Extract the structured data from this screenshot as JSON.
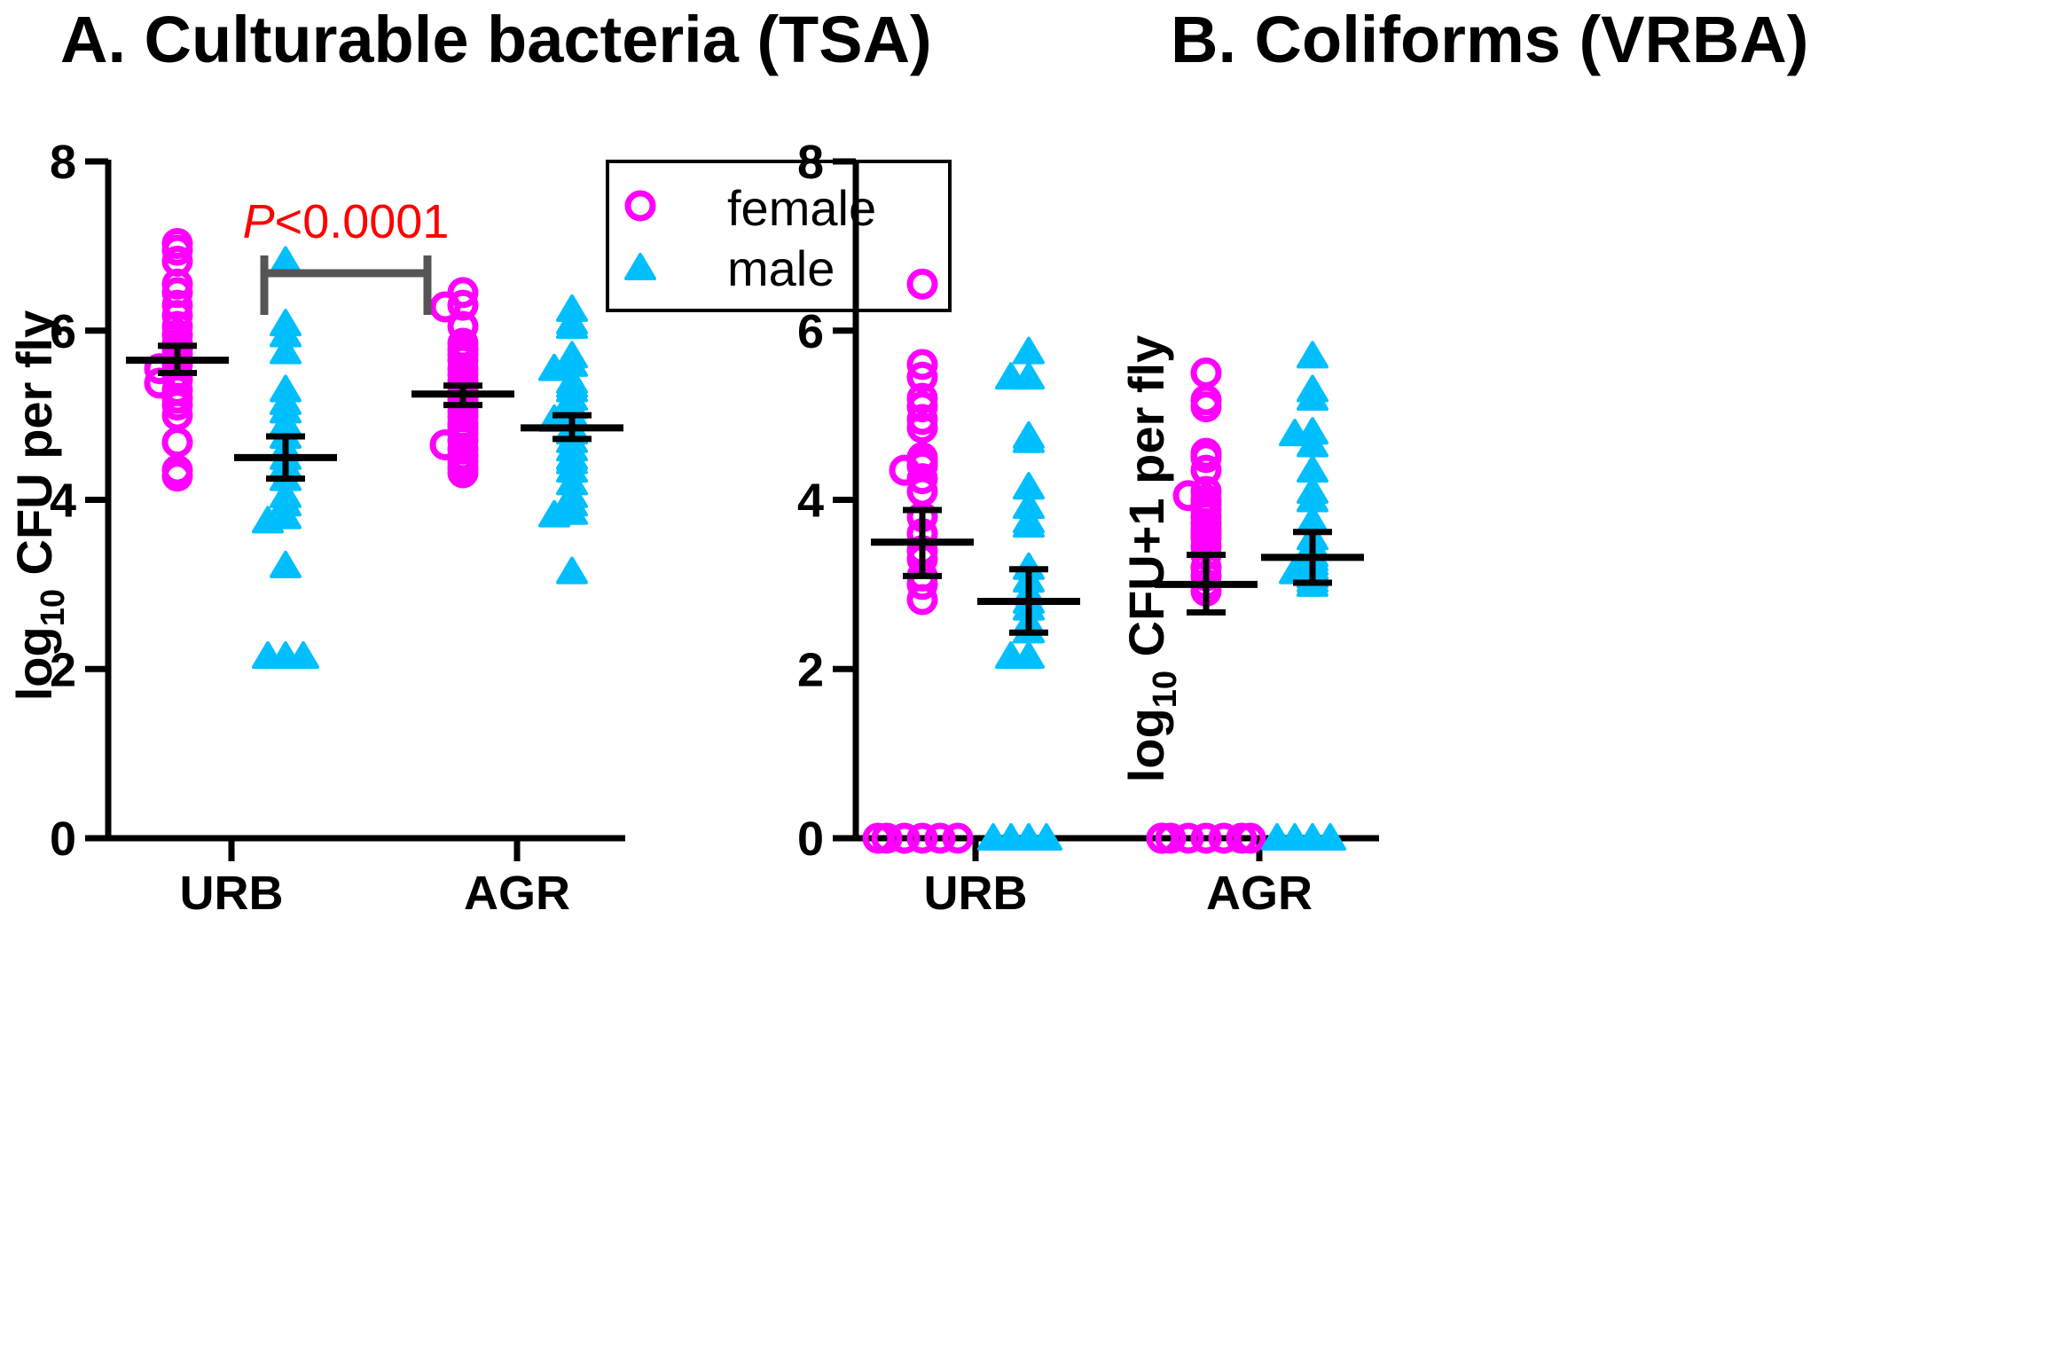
{
  "colors": {
    "female": "#ff00ff",
    "male": "#00bfff",
    "axis": "#000000",
    "stat": "#000000",
    "bracket": "#555555",
    "pvalue": "#ff0000"
  },
  "legend": {
    "female_label": "female",
    "male_label": "male",
    "female_icon": "circle-icon",
    "male_icon": "triangle-icon",
    "placement": "top-right"
  },
  "chart_data": [
    {
      "type": "scatter",
      "title": "A. Culturable bacteria (TSA)",
      "ylabel_main": "log",
      "ylabel_sub": "10",
      "ylabel_rest": " CFU per fly",
      "ylim": [
        0,
        8
      ],
      "yticks": [
        "0",
        "2",
        "4",
        "6",
        "8"
      ],
      "categories": [
        "URB",
        "AGR"
      ],
      "annotation": {
        "p_italic": "P",
        "p_rest": "<0.0001",
        "group": "URB"
      },
      "groups": [
        {
          "category": "URB",
          "female": {
            "points": [
              7.03,
              6.95,
              6.82,
              6.55,
              6.45,
              6.3,
              6.18,
              6.05,
              5.95,
              5.85,
              5.78,
              5.72,
              5.65,
              5.6,
              5.55,
              5.48,
              5.42,
              5.38,
              5.3,
              5.2,
              5.12,
              5.0,
              4.68,
              4.35,
              4.28
            ],
            "mean": 5.65,
            "sem_low": 5.5,
            "sem_high": 5.82
          },
          "male": {
            "points": [
              6.82,
              6.08,
              5.95,
              5.75,
              5.3,
              5.15,
              5.05,
              4.9,
              4.75,
              4.6,
              4.5,
              4.4,
              4.25,
              4.05,
              3.95,
              3.8,
              3.75,
              3.22,
              2.15,
              2.15,
              2.15
            ],
            "mean": 4.5,
            "sem_low": 4.25,
            "sem_high": 4.75
          }
        },
        {
          "category": "AGR",
          "female": {
            "points": [
              6.45,
              6.3,
              6.28,
              6.05,
              5.85,
              5.78,
              5.72,
              5.65,
              5.55,
              5.48,
              5.4,
              5.35,
              5.28,
              5.2,
              5.15,
              5.05,
              4.98,
              4.9,
              4.85,
              4.78,
              4.7,
              4.65,
              4.6,
              4.52,
              4.45,
              4.38,
              4.32
            ],
            "mean": 5.25,
            "sem_low": 5.12,
            "sem_high": 5.35
          },
          "male": {
            "points": [
              6.25,
              6.1,
              6.05,
              5.7,
              5.6,
              5.55,
              5.4,
              5.35,
              5.3,
              5.2,
              5.1,
              5.0,
              4.95,
              4.85,
              4.8,
              4.7,
              4.6,
              4.5,
              4.45,
              4.35,
              4.2,
              4.05,
              3.95,
              3.85,
              3.82,
              3.15
            ],
            "mean": 4.85,
            "sem_low": 4.72,
            "sem_high": 5.0
          }
        }
      ]
    },
    {
      "type": "scatter",
      "title": "B. Coliforms (VRBA)",
      "ylabel_main": "log",
      "ylabel_sub": "10",
      "ylabel_rest": " CFU+1 per fly",
      "ylim": [
        0,
        8
      ],
      "yticks": [
        "0",
        "2",
        "4",
        "6",
        "8"
      ],
      "categories": [
        "URB",
        "AGR"
      ],
      "groups": [
        {
          "category": "URB",
          "female": {
            "points": [
              6.55,
              5.6,
              5.45,
              5.2,
              5.1,
              4.95,
              4.85,
              4.5,
              4.45,
              4.4,
              4.35,
              4.25,
              4.1,
              3.8,
              3.6,
              3.4,
              3.3,
              3.1,
              3.0,
              2.82,
              0,
              0,
              0,
              0,
              0,
              0
            ],
            "mean": 3.5,
            "sem_low": 3.1,
            "sem_high": 3.88
          },
          "male": {
            "points": [
              5.75,
              5.45,
              5.45,
              4.75,
              4.7,
              4.15,
              3.92,
              3.75,
              3.7,
              3.2,
              3.05,
              2.9,
              2.8,
              2.72,
              2.55,
              2.45,
              2.15,
              2.15,
              0,
              0,
              0,
              0
            ],
            "mean": 2.8,
            "sem_low": 2.43,
            "sem_high": 3.18
          }
        },
        {
          "category": "AGR",
          "female": {
            "points": [
              5.5,
              5.18,
              5.1,
              4.55,
              4.5,
              4.35,
              4.1,
              4.05,
              4.0,
              3.95,
              3.88,
              3.8,
              3.72,
              3.65,
              3.6,
              3.55,
              3.45,
              3.35,
              3.2,
              3.1,
              3.0,
              2.92,
              0,
              0,
              0,
              0,
              0,
              0,
              0,
              0
            ],
            "mean": 3.0,
            "sem_low": 2.67,
            "sem_high": 3.35
          },
          "male": {
            "points": [
              5.7,
              5.3,
              5.2,
              4.8,
              4.78,
              4.65,
              4.35,
              4.1,
              4.0,
              3.75,
              3.55,
              3.45,
              3.35,
              3.3,
              3.25,
              3.2,
              3.15,
              3.1,
              3.05,
              3.0,
              0,
              0,
              0,
              0
            ],
            "mean": 3.32,
            "sem_low": 3.02,
            "sem_high": 3.62
          }
        }
      ]
    }
  ]
}
